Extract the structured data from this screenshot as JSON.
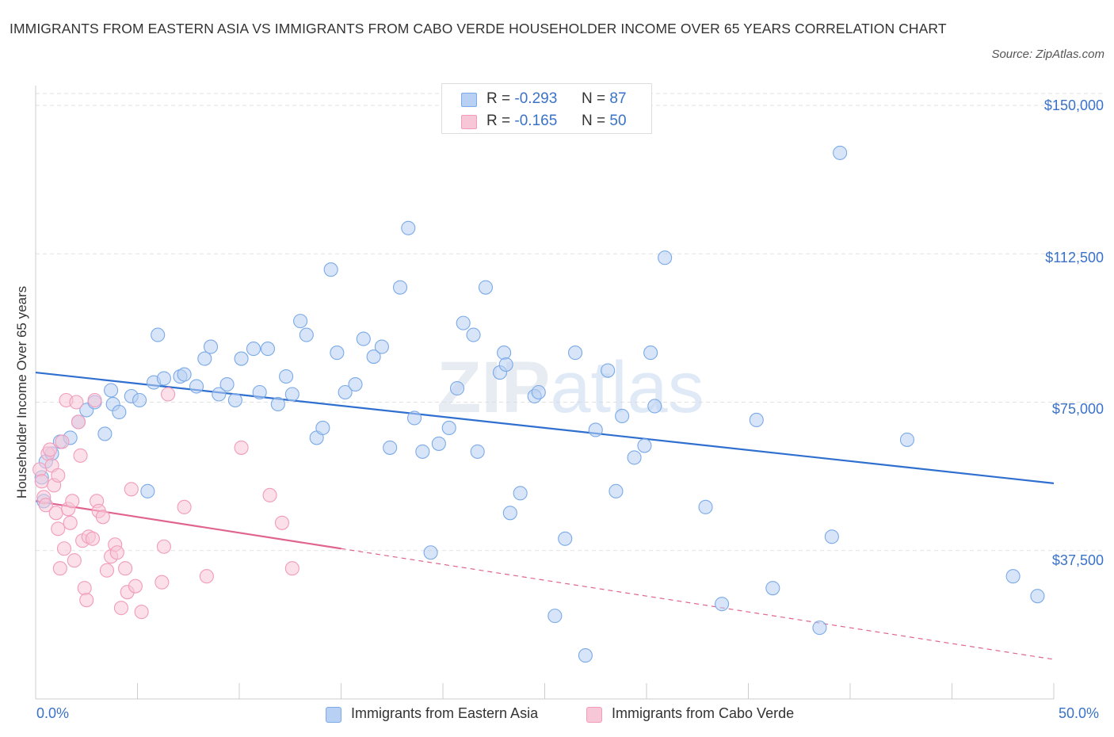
{
  "title": "IMMIGRANTS FROM EASTERN ASIA VS IMMIGRANTS FROM CABO VERDE HOUSEHOLDER INCOME OVER 65 YEARS CORRELATION CHART",
  "source": "Source: ZipAtlas.com",
  "watermark": "ZIPatlas",
  "legend_top": [
    {
      "r_label": "R =",
      "r_value": "-0.293",
      "n_label": "N =",
      "n_value": "87"
    },
    {
      "r_label": "R =",
      "r_value": "-0.165",
      "n_label": "N =",
      "n_value": "50"
    }
  ],
  "chart_data": {
    "type": "scatter",
    "ylabel": "Householder Income Over 65 years",
    "xlim": [
      0,
      50
    ],
    "ylim": [
      0,
      153000
    ],
    "x_tick_labels": [
      "0.0%",
      "50.0%"
    ],
    "y_ticks": [
      37500,
      75000,
      112500,
      150000
    ],
    "y_tick_labels": [
      "$37,500",
      "$75,000",
      "$112,500",
      "$150,000"
    ],
    "colors": {
      "eastern_asia": "#7aaae8",
      "eastern_asia_fill": "#b8d0f3",
      "eastern_asia_line": "#2f6fcf",
      "cabo_verde": "#f29bbb",
      "cabo_verde_fill": "#f7c6d7",
      "cabo_verde_line": "#e0648f"
    },
    "series": [
      {
        "name": "Immigrants from Eastern Asia",
        "key": "eastern_asia",
        "trend": {
          "x0": 0,
          "y0": 82500,
          "x1": 50,
          "y1": 54500,
          "solid_to": 50
        },
        "points": [
          [
            0.3,
            56000
          ],
          [
            0.4,
            50000
          ],
          [
            0.5,
            60000
          ],
          [
            0.8,
            62000
          ],
          [
            1.2,
            65000
          ],
          [
            1.7,
            66000
          ],
          [
            2.1,
            70000
          ],
          [
            2.5,
            73000
          ],
          [
            2.9,
            75000
          ],
          [
            3.4,
            67000
          ],
          [
            3.7,
            78000
          ],
          [
            3.8,
            74500
          ],
          [
            4.1,
            72500
          ],
          [
            4.7,
            76500
          ],
          [
            5.1,
            75500
          ],
          [
            5.5,
            52500
          ],
          [
            5.8,
            80000
          ],
          [
            6.0,
            92000
          ],
          [
            6.3,
            81000
          ],
          [
            7.1,
            81500
          ],
          [
            7.3,
            82000
          ],
          [
            7.9,
            79000
          ],
          [
            8.3,
            86000
          ],
          [
            8.6,
            89000
          ],
          [
            9.0,
            77000
          ],
          [
            9.4,
            79500
          ],
          [
            9.8,
            75500
          ],
          [
            10.1,
            86000
          ],
          [
            10.7,
            88500
          ],
          [
            11.0,
            77500
          ],
          [
            11.4,
            88500
          ],
          [
            11.9,
            74500
          ],
          [
            12.3,
            81500
          ],
          [
            12.6,
            77000
          ],
          [
            13.0,
            95500
          ],
          [
            13.3,
            92000
          ],
          [
            13.8,
            66000
          ],
          [
            14.1,
            68500
          ],
          [
            14.5,
            108500
          ],
          [
            14.8,
            87500
          ],
          [
            15.2,
            77500
          ],
          [
            15.7,
            79500
          ],
          [
            16.1,
            91000
          ],
          [
            16.6,
            86500
          ],
          [
            17.0,
            89000
          ],
          [
            17.4,
            63500
          ],
          [
            17.9,
            104000
          ],
          [
            18.3,
            119000
          ],
          [
            18.6,
            71000
          ],
          [
            19.0,
            62500
          ],
          [
            19.4,
            37000
          ],
          [
            19.8,
            64500
          ],
          [
            20.3,
            68500
          ],
          [
            20.7,
            78500
          ],
          [
            21.0,
            95000
          ],
          [
            21.5,
            92000
          ],
          [
            21.7,
            62500
          ],
          [
            22.1,
            104000
          ],
          [
            22.8,
            82500
          ],
          [
            23.0,
            87500
          ],
          [
            23.1,
            84500
          ],
          [
            23.3,
            47000
          ],
          [
            23.8,
            52000
          ],
          [
            24.5,
            76500
          ],
          [
            24.7,
            77500
          ],
          [
            25.5,
            21000
          ],
          [
            26.0,
            40500
          ],
          [
            26.5,
            87500
          ],
          [
            27.0,
            11000
          ],
          [
            27.5,
            68000
          ],
          [
            28.1,
            83000
          ],
          [
            28.5,
            52500
          ],
          [
            28.8,
            71500
          ],
          [
            29.4,
            61000
          ],
          [
            29.9,
            64000
          ],
          [
            30.2,
            87500
          ],
          [
            30.4,
            74000
          ],
          [
            30.9,
            111500
          ],
          [
            32.9,
            48500
          ],
          [
            33.7,
            24000
          ],
          [
            35.4,
            70500
          ],
          [
            36.2,
            28000
          ],
          [
            38.5,
            18000
          ],
          [
            39.1,
            41000
          ],
          [
            39.5,
            138000
          ],
          [
            42.8,
            65500
          ],
          [
            48.0,
            31000
          ],
          [
            49.2,
            26000
          ]
        ]
      },
      {
        "name": "Immigrants from Cabo Verde",
        "key": "cabo_verde",
        "trend": {
          "x0": 0,
          "y0": 50000,
          "x1": 50,
          "y1": 10000,
          "solid_to": 15
        },
        "points": [
          [
            0.2,
            58000
          ],
          [
            0.3,
            55000
          ],
          [
            0.4,
            51000
          ],
          [
            0.5,
            49000
          ],
          [
            0.6,
            62000
          ],
          [
            0.7,
            63000
          ],
          [
            0.8,
            59000
          ],
          [
            0.9,
            54000
          ],
          [
            1.0,
            47000
          ],
          [
            1.1,
            56500
          ],
          [
            1.1,
            43000
          ],
          [
            1.2,
            33000
          ],
          [
            1.3,
            65000
          ],
          [
            1.4,
            38000
          ],
          [
            1.5,
            75500
          ],
          [
            1.6,
            48000
          ],
          [
            1.7,
            44500
          ],
          [
            1.8,
            50000
          ],
          [
            1.9,
            35000
          ],
          [
            2.0,
            75000
          ],
          [
            2.1,
            70000
          ],
          [
            2.2,
            61500
          ],
          [
            2.3,
            40000
          ],
          [
            2.4,
            28000
          ],
          [
            2.5,
            25000
          ],
          [
            2.6,
            41000
          ],
          [
            2.8,
            40500
          ],
          [
            2.9,
            75500
          ],
          [
            3.0,
            50000
          ],
          [
            3.1,
            47500
          ],
          [
            3.3,
            46000
          ],
          [
            3.5,
            32500
          ],
          [
            3.7,
            36000
          ],
          [
            3.9,
            39000
          ],
          [
            4.0,
            37000
          ],
          [
            4.2,
            23000
          ],
          [
            4.4,
            33000
          ],
          [
            4.5,
            27000
          ],
          [
            4.7,
            53000
          ],
          [
            4.9,
            28500
          ],
          [
            5.2,
            22000
          ],
          [
            6.2,
            29500
          ],
          [
            6.3,
            38500
          ],
          [
            6.5,
            77000
          ],
          [
            7.3,
            48500
          ],
          [
            8.4,
            31000
          ],
          [
            10.1,
            63500
          ],
          [
            11.5,
            51500
          ],
          [
            12.1,
            44500
          ],
          [
            12.6,
            33000
          ]
        ]
      }
    ]
  },
  "bottom_legend": [
    "Immigrants from Eastern Asia",
    "Immigrants from Cabo Verde"
  ]
}
